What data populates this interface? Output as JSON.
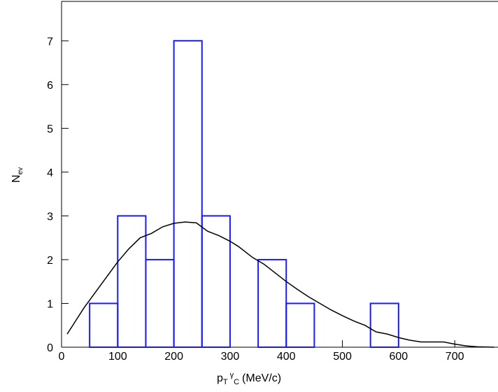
{
  "chart_data": {
    "type": "histogram",
    "bins": [
      0,
      50,
      100,
      150,
      200,
      250,
      300,
      350,
      400,
      450,
      500,
      550,
      600,
      650,
      700,
      750
    ],
    "values": [
      0,
      1,
      3,
      2,
      7,
      3,
      0,
      2,
      1,
      0,
      0,
      1,
      0,
      0,
      0
    ],
    "color": "#1a1aff",
    "curve": {
      "color": "#000000",
      "x": [
        10,
        25,
        40,
        60,
        80,
        100,
        120,
        140,
        160,
        180,
        200,
        220,
        240,
        260,
        280,
        300,
        315,
        340,
        360,
        380,
        400,
        420,
        440,
        460,
        480,
        500,
        520,
        540,
        560,
        580,
        600,
        620,
        640,
        660,
        680,
        700,
        720,
        740,
        770
      ],
      "values": [
        0.3,
        0.6,
        0.9,
        1.25,
        1.6,
        1.95,
        2.25,
        2.5,
        2.6,
        2.75,
        2.83,
        2.86,
        2.84,
        2.65,
        2.55,
        2.42,
        2.3,
        2.05,
        1.9,
        1.7,
        1.5,
        1.32,
        1.15,
        1.0,
        0.85,
        0.72,
        0.6,
        0.5,
        0.35,
        0.3,
        0.22,
        0.16,
        0.12,
        0.12,
        0.12,
        0.07,
        0.03,
        0.01,
        0
      ]
    },
    "x_label": {
      "main": "p",
      "sub": "T",
      "sup": "γ",
      "sub2": "C",
      "unit": "(MeV/c)"
    },
    "y_label": {
      "main": "N",
      "sub": "ev"
    },
    "xlim": [
      0,
      777
    ],
    "ylim": [
      0,
      7.9
    ],
    "xticks": [
      0,
      100,
      200,
      300,
      400,
      500,
      600,
      700
    ],
    "yticks": [
      0,
      1,
      2,
      3,
      4,
      5,
      6,
      7
    ]
  }
}
